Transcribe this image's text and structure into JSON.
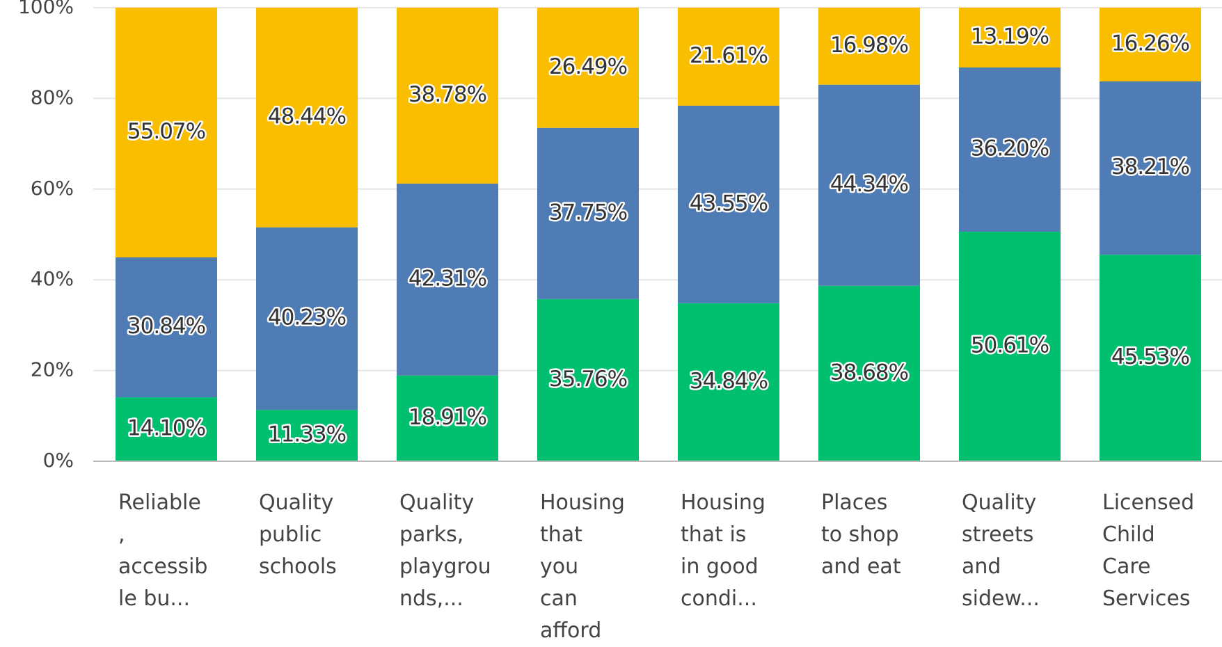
{
  "chart_data": {
    "type": "stacked_bar",
    "categories": [
      "Reliable\n,\naccessib\nle bu...",
      "Quality\npublic\nschools",
      "Quality\nparks,\nplaygrou\nnds,...",
      "Housing\nthat\nyou\ncan\nafford",
      "Housing\nthat is\nin good\ncondi...",
      "Places\nto shop\nand eat",
      "Quality\nstreets\nand\nsidew...",
      "Licensed\nChild\nCare\nServices"
    ],
    "series": [
      {
        "color": "#00bf6f",
        "values": [
          14.1,
          11.33,
          18.91,
          35.76,
          34.84,
          38.68,
          50.61,
          45.53
        ],
        "value_labels": [
          "14.10%",
          "11.33%",
          "18.91%",
          "35.76%",
          "34.84%",
          "38.68%",
          "50.61%",
          "45.53%"
        ]
      },
      {
        "color": "#507cb6",
        "values": [
          30.84,
          40.23,
          42.31,
          37.75,
          43.55,
          44.34,
          36.2,
          38.21
        ],
        "value_labels": [
          "30.84%",
          "40.23%",
          "42.31%",
          "37.75%",
          "43.55%",
          "44.34%",
          "36.20%",
          "38.21%"
        ]
      },
      {
        "color": "#f9be00",
        "values": [
          55.07,
          48.44,
          38.78,
          26.49,
          21.61,
          16.98,
          13.19,
          16.26
        ],
        "value_labels": [
          "55.07%",
          "48.44%",
          "38.78%",
          "26.49%",
          "21.61%",
          "16.98%",
          "13.19%",
          "16.26%"
        ]
      }
    ],
    "ylim": [
      0,
      100
    ],
    "yticks": [
      {
        "value": 0,
        "label": "0%"
      },
      {
        "value": 20,
        "label": "20%"
      },
      {
        "value": 40,
        "label": "40%"
      },
      {
        "value": 60,
        "label": "60%"
      },
      {
        "value": 80,
        "label": "80%"
      },
      {
        "value": 100,
        "label": "100%"
      }
    ],
    "grid": true
  }
}
